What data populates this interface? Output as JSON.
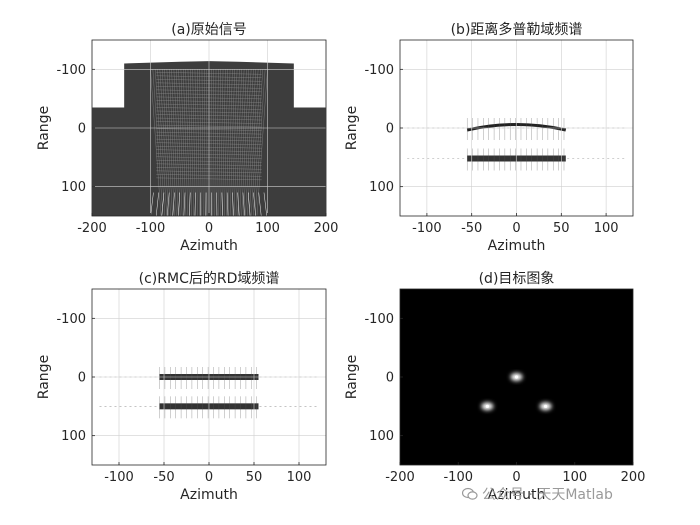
{
  "chart_data": [
    {
      "type": "heatmap",
      "title": "(a)原始信号",
      "xlabel": "Azimuth",
      "ylabel": "Range",
      "xlim": [
        -200,
        200
      ],
      "ylim": [
        -150,
        150
      ],
      "y_reversed": true,
      "xticks": [
        -200,
        -100,
        0,
        100,
        200
      ],
      "yticks": [
        -100,
        0,
        100
      ],
      "grid": true,
      "colormap": "gray",
      "content": "raw-echo"
    },
    {
      "type": "heatmap",
      "title": "(b)距离多普勒域频谱",
      "xlabel": "Azimuth",
      "ylabel": "Range",
      "xlim": [
        -130,
        130
      ],
      "ylim": [
        -150,
        150
      ],
      "y_reversed": true,
      "xticks": [
        -100,
        -50,
        0,
        50,
        100
      ],
      "yticks": [
        -100,
        0,
        100
      ],
      "grid": true,
      "colormap": "gray-inverted",
      "content": "range-doppler-before-rmc",
      "bands": [
        {
          "range": 0,
          "azimuth_span": [
            -55,
            55
          ],
          "curved": true
        },
        {
          "range": 52,
          "azimuth_span": [
            -55,
            55
          ],
          "curved": false
        }
      ]
    },
    {
      "type": "heatmap",
      "title": "(c)RMC后的RD域频谱",
      "xlabel": "Azimuth",
      "ylabel": "Range",
      "xlim": [
        -130,
        130
      ],
      "ylim": [
        -150,
        150
      ],
      "y_reversed": true,
      "xticks": [
        -100,
        -50,
        0,
        50,
        100
      ],
      "yticks": [
        -100,
        0,
        100
      ],
      "grid": true,
      "colormap": "gray-inverted",
      "content": "range-doppler-after-rmc",
      "bands": [
        {
          "range": 0,
          "azimuth_span": [
            -55,
            55
          ],
          "curved": false
        },
        {
          "range": 50,
          "azimuth_span": [
            -55,
            55
          ],
          "curved": false
        }
      ]
    },
    {
      "type": "heatmap",
      "title": "(d)目标图象",
      "xlabel": "Azimuth",
      "ylabel": "Range",
      "xlim": [
        -200,
        200
      ],
      "ylim": [
        -150,
        150
      ],
      "y_reversed": true,
      "xticks": [
        -200,
        -100,
        0,
        100,
        200
      ],
      "yticks": [
        -100,
        0,
        100
      ],
      "grid": false,
      "colormap": "gray",
      "content": "focused-targets",
      "targets": [
        {
          "azimuth": 0,
          "range": 0
        },
        {
          "azimuth": -50,
          "range": 50
        },
        {
          "azimuth": 50,
          "range": 50
        }
      ]
    }
  ],
  "watermark": {
    "text": "公众号 · 天天Matlab",
    "icon": "wechat-icon"
  }
}
